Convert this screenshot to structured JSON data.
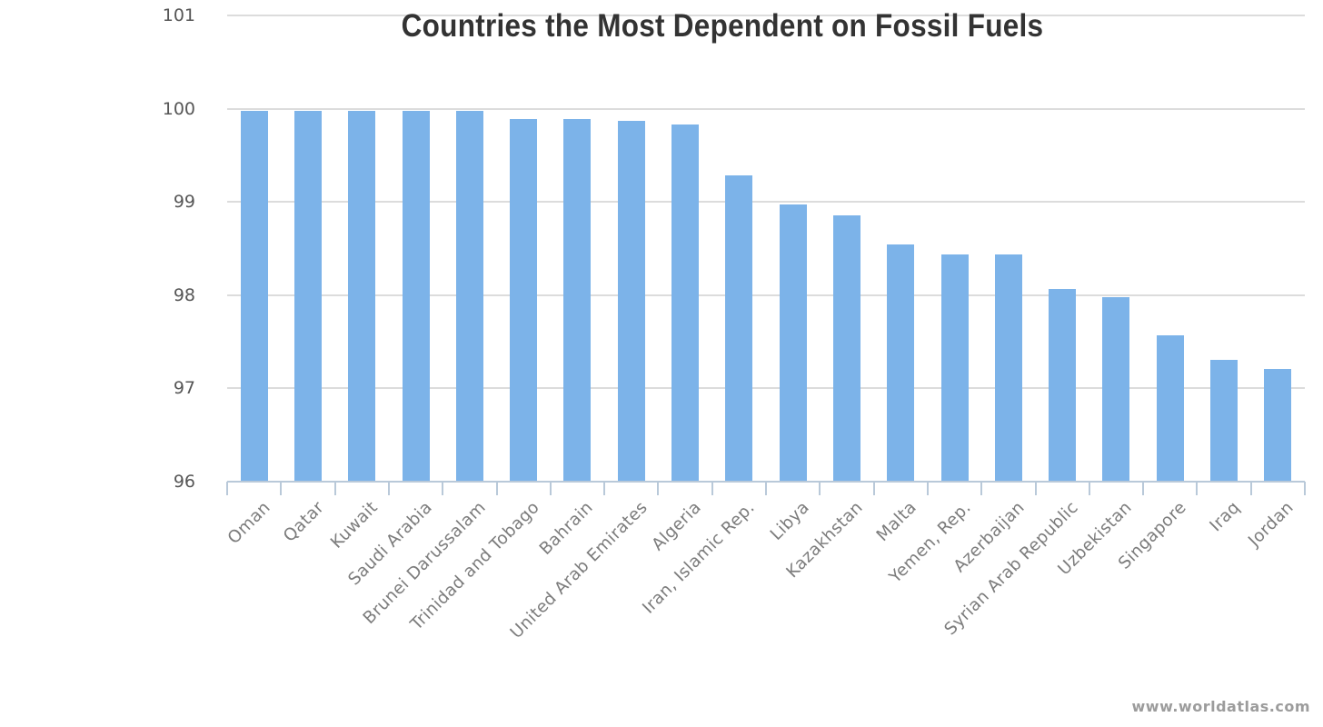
{
  "watermark": "www.worldatlas.com",
  "chart_data": {
    "type": "bar",
    "title": "Countries the Most Dependent on Fossil Fuels",
    "xlabel": "",
    "ylabel": "",
    "categories": [
      "Oman",
      "Qatar",
      "Kuwait",
      "Saudi Arabia",
      "Brunei Darussalam",
      "Trinidad and Tobago",
      "Bahrain",
      "United Arab Emirates",
      "Algeria",
      "Iran, Islamic Rep.",
      "Libya",
      "Kazakhstan",
      "Malta",
      "Yemen, Rep.",
      "Azerbaijan",
      "Syrian Arab Republic",
      "Uzbekistan",
      "Singapore",
      "Iraq",
      "Jordan"
    ],
    "values": [
      99.98,
      99.98,
      99.98,
      99.98,
      99.98,
      99.89,
      99.89,
      99.87,
      99.83,
      99.28,
      98.97,
      98.86,
      98.54,
      98.44,
      98.44,
      98.07,
      97.98,
      97.57,
      97.31,
      97.21
    ],
    "ylim": [
      96,
      101
    ],
    "yticks": [
      101,
      100,
      99,
      98,
      97,
      96
    ],
    "grid": true,
    "legend": false,
    "colors": {
      "bar": "#7cb3e9",
      "gridline": "#dcdcdc",
      "axis_line": "#b9c9d9",
      "title_text": "#333333",
      "y_label_text": "#565656",
      "x_label_text": "#7c7c7c",
      "watermark_text": "#9c9c9c"
    }
  }
}
